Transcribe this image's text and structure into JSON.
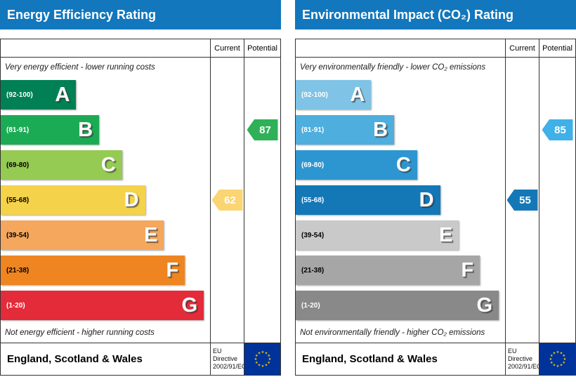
{
  "colors": {
    "header_bg": "#1277bd",
    "border": "#333333",
    "eu_flag_bg": "#003399",
    "eu_star": "#ffcc00"
  },
  "chart_data": [
    {
      "type": "bar",
      "title": "Energy Efficiency Rating",
      "categories": [
        "A",
        "B",
        "C",
        "D",
        "E",
        "F",
        "G"
      ],
      "band_ranges": [
        "92-100",
        "81-91",
        "69-80",
        "55-68",
        "39-54",
        "21-38",
        "1-20"
      ],
      "current": 62,
      "current_band": "D",
      "potential": 87,
      "potential_band": "B",
      "top_caption": "Very energy efficient - lower running costs",
      "bottom_caption": "Not energy efficient - higher running costs"
    },
    {
      "type": "bar",
      "title": "Environmental Impact (CO₂) Rating",
      "categories": [
        "A",
        "B",
        "C",
        "D",
        "E",
        "F",
        "G"
      ],
      "band_ranges": [
        "92-100",
        "81-91",
        "69-80",
        "55-68",
        "39-54",
        "21-38",
        "1-20"
      ],
      "current": 55,
      "current_band": "D",
      "potential": 85,
      "potential_band": "B",
      "top_caption": "Very environmentally friendly - lower CO₂ emissions",
      "bottom_caption": "Not environmentally friendly - higher CO₂ emissions"
    }
  ],
  "panels": [
    {
      "title": "Energy Efficiency Rating",
      "columns": {
        "current": "Current",
        "potential": "Potential"
      },
      "top_caption": "Very energy efficient - lower running costs",
      "bottom_caption": "Not energy efficient - higher running costs",
      "bands": [
        {
          "letter": "A",
          "range": "(92-100)",
          "width": "36%",
          "color": "#008054",
          "range_color": "#ffffff"
        },
        {
          "letter": "B",
          "range": "(81-91)",
          "width": "47%",
          "color": "#1cab55",
          "range_color": "#ffffff"
        },
        {
          "letter": "C",
          "range": "(69-80)",
          "width": "58%",
          "color": "#95ca53",
          "range_color": "#000000"
        },
        {
          "letter": "D",
          "range": "(55-68)",
          "width": "69%",
          "color": "#f4d24a",
          "range_color": "#000000"
        },
        {
          "letter": "E",
          "range": "(39-54)",
          "width": "78%",
          "color": "#f4a75d",
          "range_color": "#000000"
        },
        {
          "letter": "F",
          "range": "(21-38)",
          "width": "88%",
          "color": "#ee8521",
          "range_color": "#000000"
        },
        {
          "letter": "G",
          "range": "(1-20)",
          "width": "97%",
          "color": "#e42b39",
          "range_color": "#ffffff"
        }
      ],
      "current": {
        "value": "62",
        "band": "D",
        "color": "#fbd573"
      },
      "potential": {
        "value": "87",
        "band": "B",
        "color": "#2eb157"
      },
      "footer": {
        "region": "England, Scotland & Wales",
        "directive_line1": "EU Directive",
        "directive_line2": "2002/91/EC"
      }
    },
    {
      "title": "Environmental Impact (CO₂) Rating",
      "columns": {
        "current": "Current",
        "potential": "Potential"
      },
      "top_caption": "Very environmentally friendly - lower CO₂ emissions",
      "bottom_caption": "Not environmentally friendly - higher CO₂ emissions",
      "bands": [
        {
          "letter": "A",
          "range": "(92-100)",
          "width": "36%",
          "color": "#7fc3e6",
          "range_color": "#ffffff"
        },
        {
          "letter": "B",
          "range": "(81-91)",
          "width": "47%",
          "color": "#4eaede",
          "range_color": "#ffffff"
        },
        {
          "letter": "C",
          "range": "(69-80)",
          "width": "58%",
          "color": "#2d96d0",
          "range_color": "#ffffff"
        },
        {
          "letter": "D",
          "range": "(55-68)",
          "width": "69%",
          "color": "#1478b7",
          "range_color": "#ffffff"
        },
        {
          "letter": "E",
          "range": "(39-54)",
          "width": "78%",
          "color": "#c9c9c9",
          "range_color": "#000000"
        },
        {
          "letter": "F",
          "range": "(21-38)",
          "width": "88%",
          "color": "#a6a6a6",
          "range_color": "#000000"
        },
        {
          "letter": "G",
          "range": "(1-20)",
          "width": "97%",
          "color": "#898989",
          "range_color": "#ffffff"
        }
      ],
      "current": {
        "value": "55",
        "band": "D",
        "color": "#1478b7"
      },
      "potential": {
        "value": "85",
        "band": "B",
        "color": "#3fb0e8"
      },
      "footer": {
        "region": "England, Scotland & Wales",
        "directive_line1": "EU Directive",
        "directive_line2": "2002/91/EC"
      }
    }
  ]
}
